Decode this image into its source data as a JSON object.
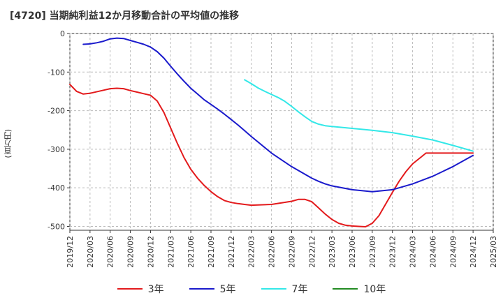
{
  "title": "[4720]  当期純利益12か月移動合計の平均値の推移",
  "ylabel": "(百万円)",
  "legend": [
    {
      "label": "3年",
      "color": "#e31a1c"
    },
    {
      "label": "5年",
      "color": "#1a1acc"
    },
    {
      "label": "7年",
      "color": "#33e8e8"
    },
    {
      "label": "10年",
      "color": "#228b22"
    }
  ],
  "chart_data": {
    "type": "line",
    "title": "[4720]  当期純利益12か月移動合計の平均値の推移",
    "ylabel": "(百万円)",
    "ylim": [
      -510,
      0
    ],
    "yticks": [
      0,
      -100,
      -200,
      -300,
      -400,
      -500
    ],
    "xticks": [
      "2019/12",
      "2020/03",
      "2020/06",
      "2020/09",
      "2020/12",
      "2021/03",
      "2021/06",
      "2021/09",
      "2021/12",
      "2022/03",
      "2022/06",
      "2022/09",
      "2022/12",
      "2023/03",
      "2023/06",
      "2023/09",
      "2023/12",
      "2024/03",
      "2024/06",
      "2024/09",
      "2024/12",
      "2025/03"
    ],
    "grid": "y-dashed",
    "legend_position": "bottom",
    "series": [
      {
        "name": "3年",
        "color": "#e31a1c",
        "x": [
          "2019/12",
          "2020/01",
          "2020/02",
          "2020/03",
          "2020/05",
          "2020/06",
          "2020/07",
          "2020/08",
          "2020/09",
          "2020/10",
          "2020/11",
          "2020/12",
          "2021/01",
          "2021/02",
          "2021/03",
          "2021/04",
          "2021/05",
          "2021/06",
          "2021/07",
          "2021/08",
          "2021/09",
          "2021/10",
          "2021/11",
          "2021/12",
          "2022/01",
          "2022/02",
          "2022/03",
          "2022/06",
          "2022/09",
          "2022/10",
          "2022/11",
          "2022/12",
          "2023/01",
          "2023/02",
          "2023/03",
          "2023/04",
          "2023/05",
          "2023/06",
          "2023/07",
          "2023/08",
          "2023/09",
          "2023/10",
          "2023/11",
          "2023/12",
          "2024/01",
          "2024/02",
          "2024/03",
          "2024/05",
          "2024/07",
          "2024/09",
          "2024/12"
        ],
        "values": [
          -132,
          -150,
          -157,
          -155,
          -147,
          -143,
          -142,
          -143,
          -148,
          -152,
          -156,
          -160,
          -175,
          -205,
          -245,
          -285,
          -322,
          -352,
          -375,
          -394,
          -410,
          -423,
          -433,
          -438,
          -441,
          -443,
          -445,
          -443,
          -435,
          -430,
          -430,
          -436,
          -452,
          -468,
          -482,
          -492,
          -497,
          -499,
          -500,
          -501,
          -492,
          -472,
          -442,
          -412,
          -383,
          -358,
          -338,
          -310,
          -310,
          -310,
          -310
        ]
      },
      {
        "name": "5年",
        "color": "#1a1acc",
        "x": [
          "2020/02",
          "2020/03",
          "2020/04",
          "2020/05",
          "2020/06",
          "2020/07",
          "2020/08",
          "2020/09",
          "2020/10",
          "2020/11",
          "2020/12",
          "2021/01",
          "2021/02",
          "2021/03",
          "2021/04",
          "2021/05",
          "2021/06",
          "2021/07",
          "2021/08",
          "2021/09",
          "2021/10",
          "2021/11",
          "2021/12",
          "2022/01",
          "2022/02",
          "2022/03",
          "2022/06",
          "2022/09",
          "2022/12",
          "2023/01",
          "2023/02",
          "2023/03",
          "2023/06",
          "2023/09",
          "2023/12",
          "2024/03",
          "2024/06",
          "2024/09",
          "2024/12"
        ],
        "values": [
          -28,
          -27,
          -24,
          -20,
          -14,
          -12,
          -13,
          -18,
          -23,
          -28,
          -35,
          -47,
          -64,
          -85,
          -105,
          -124,
          -142,
          -157,
          -172,
          -184,
          -196,
          -209,
          -223,
          -237,
          -252,
          -267,
          -310,
          -345,
          -375,
          -383,
          -390,
          -395,
          -405,
          -410,
          -405,
          -390,
          -370,
          -345,
          -316
        ]
      },
      {
        "name": "7年",
        "color": "#33e8e8",
        "x": [
          "2022/02",
          "2022/03",
          "2022/04",
          "2022/05",
          "2022/06",
          "2022/07",
          "2022/08",
          "2022/09",
          "2022/10",
          "2022/11",
          "2022/12",
          "2023/01",
          "2023/02",
          "2023/03",
          "2023/06",
          "2023/09",
          "2023/12",
          "2024/03",
          "2024/06",
          "2024/09",
          "2024/12"
        ],
        "values": [
          -120,
          -130,
          -141,
          -150,
          -158,
          -166,
          -176,
          -189,
          -203,
          -216,
          -228,
          -235,
          -239,
          -241,
          -246,
          -251,
          -257,
          -266,
          -276,
          -290,
          -305
        ]
      },
      {
        "name": "10年",
        "color": "#228b22",
        "x": [],
        "values": []
      }
    ]
  }
}
